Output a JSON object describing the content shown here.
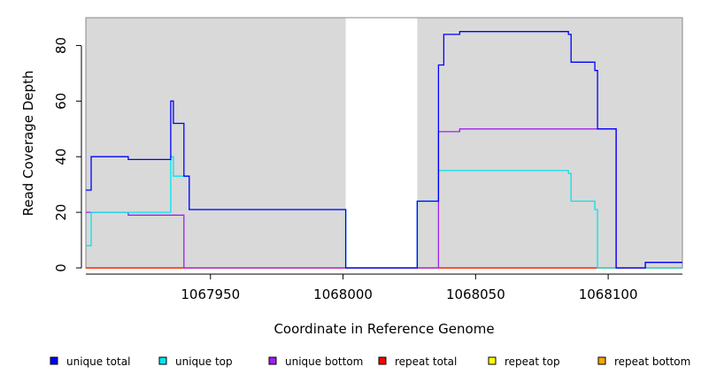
{
  "chart_data": {
    "type": "line",
    "title": "",
    "xlabel": "Coordinate in Reference Genome",
    "ylabel": "Read Coverage Depth",
    "xlim": [
      1067903,
      1068128
    ],
    "ylim": [
      0,
      90
    ],
    "x_ticks": [
      1067950,
      1068000,
      1068050,
      1068100
    ],
    "y_ticks": [
      0,
      20,
      40,
      60,
      80
    ],
    "grid": false,
    "step_lines": true,
    "background_color": "#d9d9d9",
    "shaded_regions": [
      {
        "x0": 1067903,
        "x1": 1068001
      },
      {
        "x0": 1068028,
        "x1": 1068128
      }
    ],
    "legend_position": "bottom",
    "series": [
      {
        "name": "unique total",
        "color": "#0000ff",
        "points": [
          [
            1067903,
            28
          ],
          [
            1067905,
            40
          ],
          [
            1067919,
            39
          ],
          [
            1067935,
            60
          ],
          [
            1067936,
            52
          ],
          [
            1067940,
            33
          ],
          [
            1067942,
            21
          ],
          [
            1068001,
            0
          ],
          [
            1068028,
            24
          ],
          [
            1068036,
            73
          ],
          [
            1068038,
            84
          ],
          [
            1068044,
            85
          ],
          [
            1068085,
            84
          ],
          [
            1068086,
            74
          ],
          [
            1068095,
            71
          ],
          [
            1068096,
            50
          ],
          [
            1068103,
            0
          ],
          [
            1068114,
            2
          ],
          [
            1068128,
            2
          ]
        ]
      },
      {
        "name": "unique top",
        "color": "#00e5ee",
        "points": [
          [
            1067903,
            8
          ],
          [
            1067905,
            20
          ],
          [
            1067935,
            40
          ],
          [
            1067936,
            33
          ],
          [
            1067940,
            33
          ],
          [
            1067942,
            21
          ],
          [
            1068001,
            0
          ],
          [
            1068028,
            24
          ],
          [
            1068036,
            35
          ],
          [
            1068085,
            34
          ],
          [
            1068086,
            24
          ],
          [
            1068095,
            21
          ],
          [
            1068096,
            0
          ],
          [
            1068128,
            0
          ]
        ]
      },
      {
        "name": "unique bottom",
        "color": "#a020f0",
        "points": [
          [
            1067903,
            20
          ],
          [
            1067919,
            19
          ],
          [
            1067940,
            0
          ],
          [
            1068036,
            49
          ],
          [
            1068044,
            50
          ],
          [
            1068096,
            50
          ],
          [
            1068103,
            0
          ],
          [
            1068114,
            2
          ],
          [
            1068128,
            2
          ]
        ]
      },
      {
        "name": "repeat total",
        "color": "#ff0000",
        "points": [
          [
            1067903,
            0
          ],
          [
            1068128,
            0
          ]
        ]
      },
      {
        "name": "repeat top",
        "color": "#ffff00",
        "points": [
          [
            1067903,
            0
          ],
          [
            1068128,
            0
          ]
        ]
      },
      {
        "name": "repeat bottom",
        "color": "#ffa500",
        "points": [
          [
            1067903,
            0
          ],
          [
            1068128,
            0
          ]
        ]
      }
    ]
  }
}
